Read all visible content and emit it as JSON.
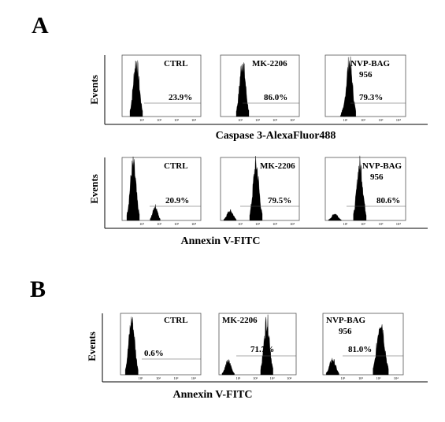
{
  "chart_data": [
    {
      "type": "histogram",
      "panel": "A",
      "title": "",
      "xlabel": "Caspase 3-AlexaFluor488",
      "ylabel": "Events",
      "x_tick_labels": [
        "10¹",
        "10²",
        "10³",
        "10⁴"
      ],
      "subplots": [
        {
          "condition": "CTRL",
          "gate_percent": "23.9%",
          "peaks": [
            {
              "x": 0.18,
              "h": 1.0,
              "w": 0.05
            }
          ]
        },
        {
          "condition": "MK-2206",
          "gate_percent": "86.0%",
          "peaks": [
            {
              "x": 0.28,
              "h": 1.0,
              "w": 0.05
            }
          ]
        },
        {
          "condition": "NVP-BAG 956",
          "gate_percent": "79.3%",
          "peaks": [
            {
              "x": 0.3,
              "h": 1.0,
              "w": 0.05
            },
            {
              "x": 0.22,
              "h": 0.15,
              "w": 0.02
            }
          ]
        }
      ]
    },
    {
      "type": "histogram",
      "panel": "A",
      "title": "",
      "xlabel": "Annexin V-FITC",
      "ylabel": "Events",
      "x_tick_labels": [
        "10¹",
        "10²",
        "10³",
        "10⁴"
      ],
      "subplots": [
        {
          "condition": "CTRL",
          "gate_percent": "20.9%",
          "peaks": [
            {
              "x": 0.14,
              "h": 1.0,
              "w": 0.05
            },
            {
              "x": 0.42,
              "h": 0.25,
              "w": 0.04
            }
          ]
        },
        {
          "condition": "MK-2206",
          "gate_percent": "79.5%",
          "peaks": [
            {
              "x": 0.12,
              "h": 0.18,
              "w": 0.05
            },
            {
              "x": 0.45,
              "h": 1.0,
              "w": 0.05
            }
          ]
        },
        {
          "condition": "NVP-BAG 956",
          "gate_percent": "80.6%",
          "peaks": [
            {
              "x": 0.12,
              "h": 0.12,
              "w": 0.05
            },
            {
              "x": 0.43,
              "h": 1.0,
              "w": 0.05
            }
          ]
        }
      ]
    },
    {
      "type": "histogram",
      "panel": "B",
      "title": "",
      "xlabel": "Annexin V-FITC",
      "ylabel": "Events",
      "x_tick_labels": [
        "10¹",
        "10²",
        "10³",
        "10⁴"
      ],
      "subplots": [
        {
          "condition": "CTRL",
          "gate_percent": "0.6%",
          "peaks": [
            {
              "x": 0.14,
              "h": 1.0,
              "w": 0.05
            }
          ]
        },
        {
          "condition": "MK-2206",
          "gate_percent": "71.7%",
          "peaks": [
            {
              "x": 0.12,
              "h": 0.25,
              "w": 0.05
            },
            {
              "x": 0.62,
              "h": 1.0,
              "w": 0.05
            }
          ]
        },
        {
          "condition": "NVP-BAG 956",
          "gate_percent": "81.0%",
          "peaks": [
            {
              "x": 0.12,
              "h": 0.28,
              "w": 0.05
            },
            {
              "x": 0.72,
              "h": 1.0,
              "w": 0.06
            }
          ]
        }
      ]
    }
  ],
  "labels": {
    "panel_a": "A",
    "panel_b": "B",
    "events": "Events",
    "caspase": "Caspase 3-AlexaFluor488",
    "annexin": "Annexin V-FITC",
    "ctrl": "CTRL",
    "mk": "MK-2206",
    "nvp_line1": "NVP-BAG",
    "nvp_line2": "956"
  }
}
